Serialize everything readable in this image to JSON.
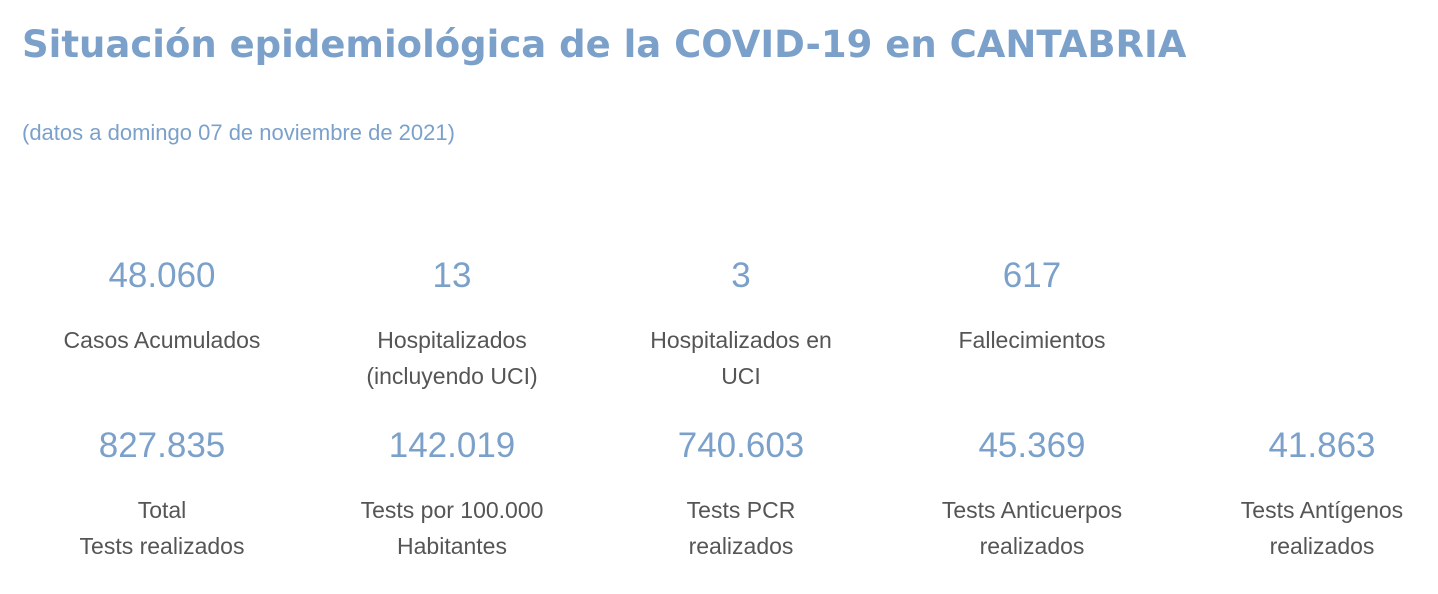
{
  "header": {
    "title": "Situación epidemiológica de la COVID-19 en CANTABRIA",
    "subtitle": "(datos a domingo 07 de noviembre de 2021)"
  },
  "row1": [
    {
      "value": "48.060",
      "label_line1": "Casos Acumulados",
      "label_line2": ""
    },
    {
      "value": "13",
      "label_line1": "Hospitalizados",
      "label_line2": "(incluyendo UCI)"
    },
    {
      "value": "3",
      "label_line1": "Hospitalizados en",
      "label_line2": "UCI"
    },
    {
      "value": "617",
      "label_line1": "Fallecimientos",
      "label_line2": ""
    }
  ],
  "row2": [
    {
      "value": "827.835",
      "label_line1": "Total",
      "label_line2": "Tests realizados"
    },
    {
      "value": "142.019",
      "label_line1": "Tests por 100.000",
      "label_line2": "Habitantes"
    },
    {
      "value": "740.603",
      "label_line1": "Tests PCR",
      "label_line2": "realizados"
    },
    {
      "value": "45.369",
      "label_line1": "Tests Anticuerpos",
      "label_line2": "realizados"
    },
    {
      "value": "41.863",
      "label_line1": "Tests Antígenos",
      "label_line2": "realizados"
    }
  ],
  "colors": {
    "accent": "#7ba1cb",
    "label_text": "#555555",
    "background": "#ffffff"
  }
}
